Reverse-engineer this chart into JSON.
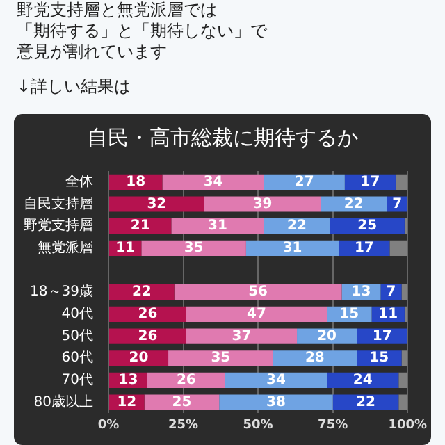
{
  "chart_data": {
    "type": "bar",
    "orientation": "horizontal",
    "stacked": true,
    "title": "自民・高市総裁に期待するか",
    "annotations": [
      "野党支持層と無党派層では",
      "「期待する」と「期待しない」で",
      "意見が割れています",
      "↓詳しい結果は"
    ],
    "categories": [
      "全体",
      "自民支持層",
      "野党支持層",
      "無党派層",
      null,
      "18～39歳",
      "40代",
      "50代",
      "60代",
      "70代",
      "80歳以上"
    ],
    "series": [
      {
        "color": "#b5124f",
        "values": [
          18,
          32,
          21,
          11,
          null,
          22,
          26,
          26,
          20,
          13,
          12
        ],
        "value_labels": [
          "18",
          "32",
          "21",
          "11",
          null,
          "22",
          "26",
          "26",
          "20",
          "13",
          "12"
        ]
      },
      {
        "color": "#e07ab0",
        "values": [
          34,
          39,
          31,
          35,
          null,
          56,
          47,
          37,
          35,
          26,
          25
        ],
        "value_labels": [
          "34",
          "39",
          "31",
          "35",
          null,
          "56",
          "47",
          "37",
          "35",
          "26",
          "25"
        ]
      },
      {
        "color": "#6fa3e3",
        "values": [
          27,
          22,
          22,
          31,
          null,
          13,
          15,
          20,
          28,
          34,
          38
        ],
        "value_labels": [
          "27",
          "22",
          "22",
          "31",
          null,
          "13",
          "15",
          "20",
          "28",
          "34",
          "38"
        ]
      },
      {
        "color": "#2747c7",
        "values": [
          17,
          7,
          25,
          17,
          null,
          7,
          11,
          17,
          15,
          24,
          22
        ],
        "value_labels": [
          "17",
          "7",
          "25",
          "17",
          null,
          "7",
          "11",
          "17",
          "15",
          "24",
          "22"
        ]
      },
      {
        "color": "#808080",
        "values": [
          4,
          0,
          1,
          6,
          null,
          2,
          1,
          0,
          2,
          3,
          3
        ],
        "value_labels": [
          null,
          null,
          null,
          null,
          null,
          null,
          null,
          null,
          null,
          null,
          null
        ]
      }
    ],
    "xlim": [
      0,
      100
    ],
    "xticks": [
      {
        "value": 0,
        "label": "0%"
      },
      {
        "value": 25,
        "label": "25%"
      },
      {
        "value": 50,
        "label": "50%"
      },
      {
        "value": 75,
        "label": "75%"
      },
      {
        "value": 100,
        "label": "100%"
      }
    ],
    "grid": "x"
  }
}
